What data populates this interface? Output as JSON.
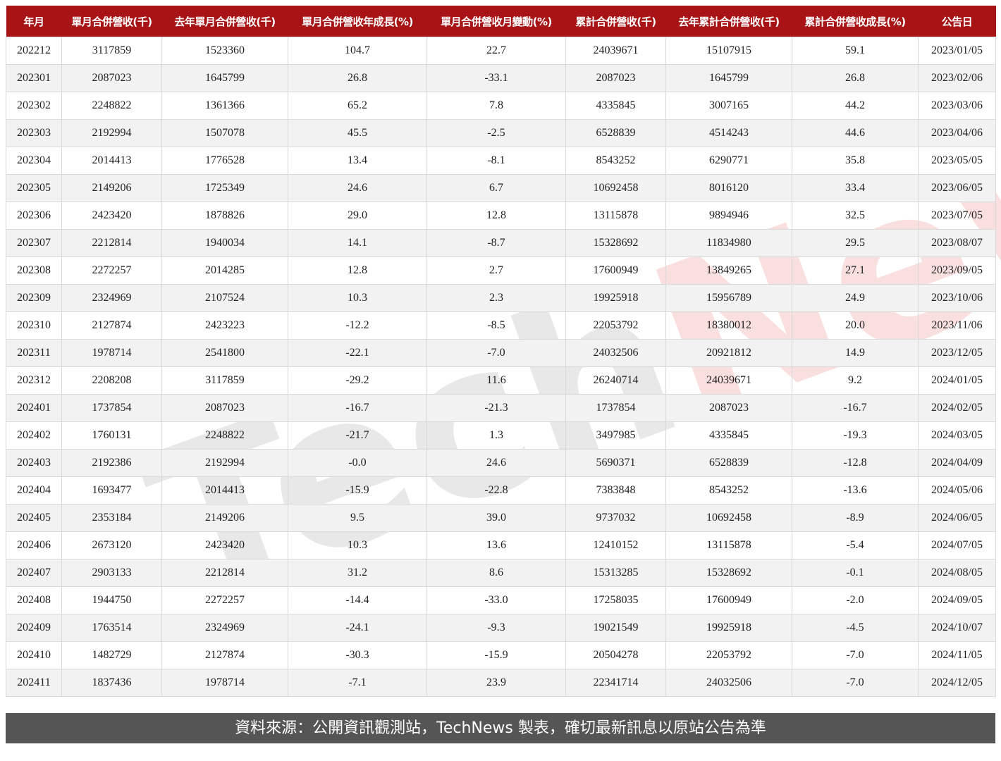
{
  "watermark": {
    "part1": "Tech",
    "part2": "News"
  },
  "chart_data": {
    "type": "table",
    "columns": [
      "年月",
      "單月合併營收(千)",
      "去年單月合併營收(千)",
      "單月合併營收年成長(%)",
      "單月合併營收月變動(%)",
      "累計合併營收(千)",
      "去年累計合併營收(千)",
      "累計合併營收成長(%)",
      "公告日"
    ],
    "rows": [
      [
        "202212",
        "3117859",
        "1523360",
        "104.7",
        "22.7",
        "24039671",
        "15107915",
        "59.1",
        "2023/01/05"
      ],
      [
        "202301",
        "2087023",
        "1645799",
        "26.8",
        "-33.1",
        "2087023",
        "1645799",
        "26.8",
        "2023/02/06"
      ],
      [
        "202302",
        "2248822",
        "1361366",
        "65.2",
        "7.8",
        "4335845",
        "3007165",
        "44.2",
        "2023/03/06"
      ],
      [
        "202303",
        "2192994",
        "1507078",
        "45.5",
        "-2.5",
        "6528839",
        "4514243",
        "44.6",
        "2023/04/06"
      ],
      [
        "202304",
        "2014413",
        "1776528",
        "13.4",
        "-8.1",
        "8543252",
        "6290771",
        "35.8",
        "2023/05/05"
      ],
      [
        "202305",
        "2149206",
        "1725349",
        "24.6",
        "6.7",
        "10692458",
        "8016120",
        "33.4",
        "2023/06/05"
      ],
      [
        "202306",
        "2423420",
        "1878826",
        "29.0",
        "12.8",
        "13115878",
        "9894946",
        "32.5",
        "2023/07/05"
      ],
      [
        "202307",
        "2212814",
        "1940034",
        "14.1",
        "-8.7",
        "15328692",
        "11834980",
        "29.5",
        "2023/08/07"
      ],
      [
        "202308",
        "2272257",
        "2014285",
        "12.8",
        "2.7",
        "17600949",
        "13849265",
        "27.1",
        "2023/09/05"
      ],
      [
        "202309",
        "2324969",
        "2107524",
        "10.3",
        "2.3",
        "19925918",
        "15956789",
        "24.9",
        "2023/10/06"
      ],
      [
        "202310",
        "2127874",
        "2423223",
        "-12.2",
        "-8.5",
        "22053792",
        "18380012",
        "20.0",
        "2023/11/06"
      ],
      [
        "202311",
        "1978714",
        "2541800",
        "-22.1",
        "-7.0",
        "24032506",
        "20921812",
        "14.9",
        "2023/12/05"
      ],
      [
        "202312",
        "2208208",
        "3117859",
        "-29.2",
        "11.6",
        "26240714",
        "24039671",
        "9.2",
        "2024/01/05"
      ],
      [
        "202401",
        "1737854",
        "2087023",
        "-16.7",
        "-21.3",
        "1737854",
        "2087023",
        "-16.7",
        "2024/02/05"
      ],
      [
        "202402",
        "1760131",
        "2248822",
        "-21.7",
        "1.3",
        "3497985",
        "4335845",
        "-19.3",
        "2024/03/05"
      ],
      [
        "202403",
        "2192386",
        "2192994",
        "-0.0",
        "24.6",
        "5690371",
        "6528839",
        "-12.8",
        "2024/04/09"
      ],
      [
        "202404",
        "1693477",
        "2014413",
        "-15.9",
        "-22.8",
        "7383848",
        "8543252",
        "-13.6",
        "2024/05/06"
      ],
      [
        "202405",
        "2353184",
        "2149206",
        "9.5",
        "39.0",
        "9737032",
        "10692458",
        "-8.9",
        "2024/06/05"
      ],
      [
        "202406",
        "2673120",
        "2423420",
        "10.3",
        "13.6",
        "12410152",
        "13115878",
        "-5.4",
        "2024/07/05"
      ],
      [
        "202407",
        "2903133",
        "2212814",
        "31.2",
        "8.6",
        "15313285",
        "15328692",
        "-0.1",
        "2024/08/05"
      ],
      [
        "202408",
        "1944750",
        "2272257",
        "-14.4",
        "-33.0",
        "17258035",
        "17600949",
        "-2.0",
        "2024/09/05"
      ],
      [
        "202409",
        "1763514",
        "2324969",
        "-24.1",
        "-9.3",
        "19021549",
        "19925918",
        "-4.5",
        "2024/10/07"
      ],
      [
        "202410",
        "1482729",
        "2127874",
        "-30.3",
        "-15.9",
        "20504278",
        "22053792",
        "-7.0",
        "2024/11/05"
      ],
      [
        "202411",
        "1837436",
        "1978714",
        "-7.1",
        "23.9",
        "22341714",
        "24032506",
        "-7.0",
        "2024/12/05"
      ]
    ]
  },
  "colors": {
    "header_bg": "#a81416",
    "footer_bg": "#555555",
    "alt_row": "#f2f2f2"
  },
  "footer": {
    "text": "資料來源：公開資訊觀測站，TechNews 製表，確切最新訊息以原站公告為準"
  }
}
